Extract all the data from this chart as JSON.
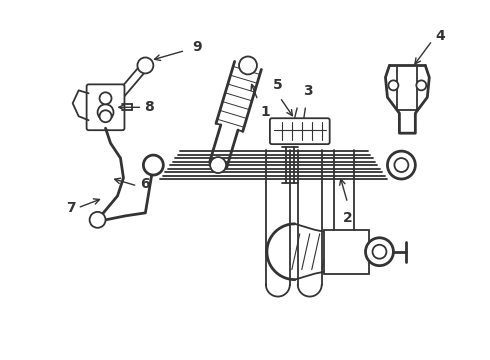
{
  "bg_color": "#ffffff",
  "line_color": "#333333",
  "label_color": "#000000",
  "fig_width": 4.9,
  "fig_height": 3.6,
  "dpi": 100,
  "xlim": [
    0,
    490
  ],
  "ylim": [
    0,
    360
  ]
}
